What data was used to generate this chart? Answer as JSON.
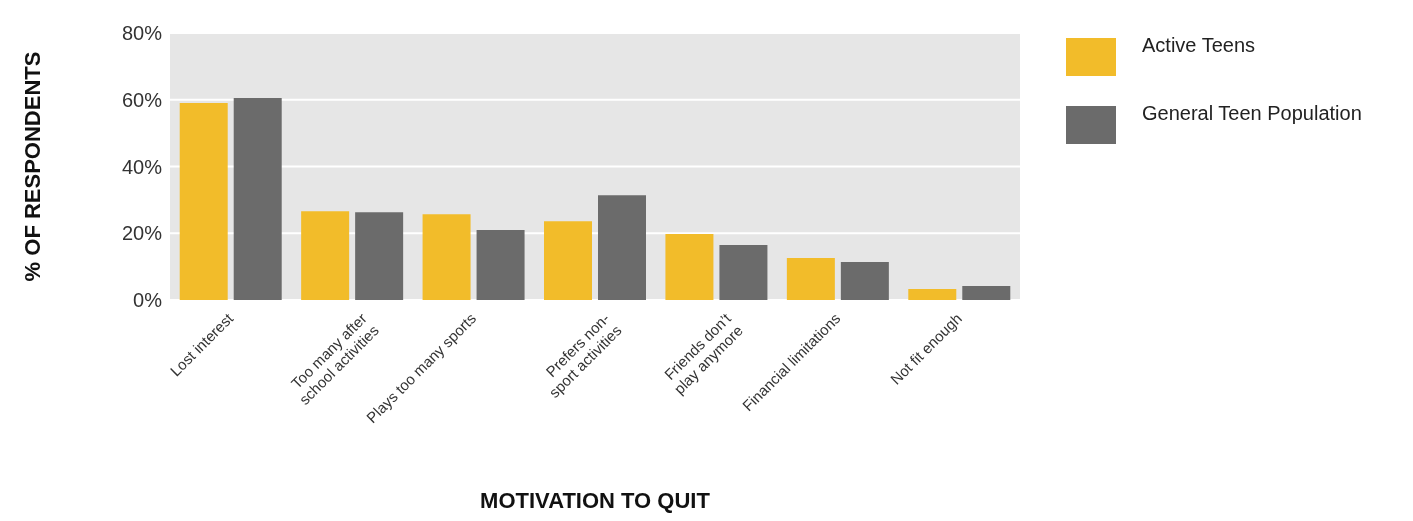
{
  "chart_data": {
    "type": "bar",
    "xlabel": "MOTIVATION TO QUIT",
    "ylabel": "% OF RESPONDENTS",
    "categories": [
      "Lost interest",
      "Too many after\nschool activities",
      "Plays too many sports",
      "Prefers non-\nsport activities",
      "Friends don’t\nplay anymore",
      "Financial limitations",
      "Not fit enough"
    ],
    "series": [
      {
        "name": "Active Teens",
        "color": "#f2bc2a",
        "values": [
          59,
          26.6,
          25.7,
          23.6,
          19.8,
          12.6,
          3.3
        ]
      },
      {
        "name": "General Teen Population",
        "color": "#6b6b6b",
        "values": [
          60.5,
          26.3,
          21,
          31.4,
          16.5,
          11.4,
          4.2
        ]
      }
    ],
    "ylim": [
      0,
      80
    ],
    "yticks": [
      {
        "value": 0,
        "label": "0%"
      },
      {
        "value": 20,
        "label": "20%"
      },
      {
        "value": 40,
        "label": "40%"
      },
      {
        "value": 60,
        "label": "60%"
      },
      {
        "value": 80,
        "label": "80%"
      }
    ],
    "grid": "y",
    "legend": "right"
  }
}
